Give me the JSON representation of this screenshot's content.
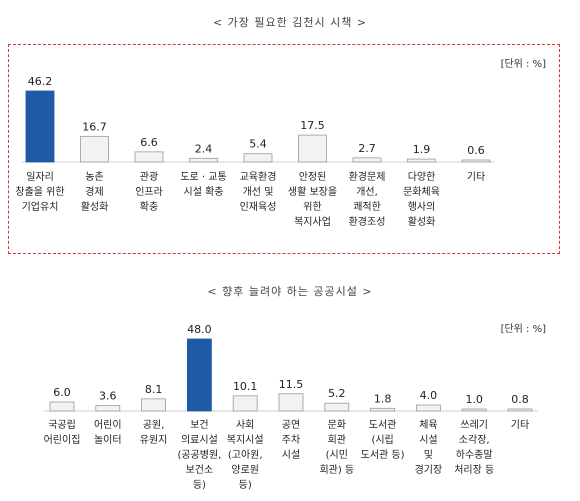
{
  "chart_data": [
    {
      "type": "bar",
      "title": "< 가장 필요한 김천시 시책 >",
      "unit": "[단위 : %]",
      "categories": [
        "일자리\n창출을 위한\n기업유치",
        "농촌\n경제\n활성화",
        "관광\n인프라\n확충",
        "도로 · 교통\n시설 확충",
        "교육환경\n개선 및\n인재육성",
        "안정된\n생활 보장을\n위한\n복지사업",
        "환경문제\n개선,\n쾌적한\n환경조성",
        "다양한\n문화체육\n행사의\n활성화",
        "기타"
      ],
      "values": [
        46.2,
        16.7,
        6.6,
        2.4,
        5.4,
        17.5,
        2.7,
        1.9,
        0.6
      ],
      "value_labels": [
        "46.2",
        "16.7",
        "6.6",
        "2.4",
        "5.4",
        "17.5",
        "2.7",
        "1.9",
        "0.6"
      ],
      "highlight_index": 0,
      "ylim": [
        0,
        50
      ]
    },
    {
      "type": "bar",
      "title": "< 향후 늘려야 하는 공공시설 >",
      "unit": "[단위 : %]",
      "categories": [
        "국공립\n어린이집",
        "어린이\n놀이터",
        "공원,\n유원지",
        "보건\n의료시설\n(공공병원,\n보건소\n등)",
        "사회\n복지시설\n(고아원,\n양로원\n등)",
        "공연\n주차\n시설",
        "문화\n회관\n(시민\n회관) 등",
        "도서관\n(시립\n도서관 등)",
        "체육\n시설\n및\n경기장",
        "쓰레기\n소각장,\n하수종말\n처리장 등",
        "기타"
      ],
      "values": [
        6.0,
        3.6,
        8.1,
        48.0,
        10.1,
        11.5,
        5.2,
        1.8,
        4.0,
        1.0,
        0.8
      ],
      "value_labels": [
        "6.0",
        "3.6",
        "8.1",
        "48.0",
        "10.1",
        "11.5",
        "5.2",
        "1.8",
        "4.0",
        "1.0",
        "0.8"
      ],
      "highlight_index": 3,
      "ylim": [
        0,
        50
      ]
    }
  ],
  "colors": {
    "highlight_bar": "#1f5aa6",
    "normal_bar": "#f2f2f2",
    "bar_border": "#9a9a9a",
    "frame": "#dd3333"
  }
}
